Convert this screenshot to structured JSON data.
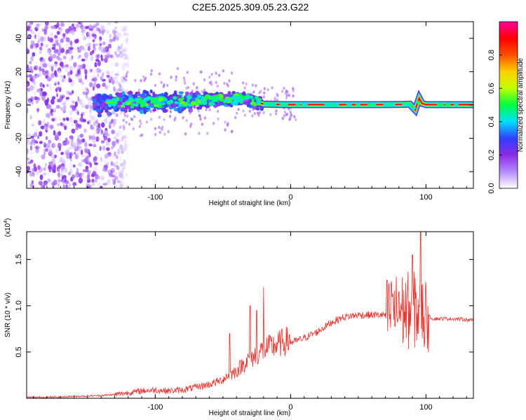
{
  "title": "C2E5.2025.309.05.23.G22",
  "chart_data": [
    {
      "type": "heatmap",
      "xlabel": "Height of straight line (km)",
      "ylabel": "Frequency (Hz)",
      "xlim": [
        -195,
        135
      ],
      "ylim": [
        -50,
        50
      ],
      "x_ticks": [
        -100,
        0,
        100
      ],
      "x_tick_labels": [
        "-100",
        "0",
        "100"
      ],
      "y_ticks": [
        -40,
        -20,
        0,
        20,
        40
      ],
      "y_tick_labels": [
        "-40",
        "-20",
        "0",
        "20",
        "40"
      ],
      "centerline": {
        "x": [
          -145,
          -130,
          -110,
          -90,
          -70,
          -55,
          -45,
          -35,
          -25,
          -20,
          -10,
          0,
          20,
          40,
          60,
          80,
          88,
          92,
          95,
          97,
          100,
          120,
          135
        ],
        "y": [
          0,
          1,
          1.5,
          2,
          2.5,
          3,
          3.5,
          4,
          2,
          0.5,
          0.3,
          0.2,
          0.2,
          0.2,
          0.2,
          0.3,
          0.5,
          -3,
          4,
          1,
          0.2,
          0.2,
          0.2
        ]
      },
      "noise_region": {
        "x_range": [
          -195,
          -120
        ],
        "amplitude": 0.15
      },
      "colorbar": {
        "label": "Normalized spectral amplitude",
        "range": [
          0,
          1
        ],
        "ticks": [
          0.0,
          0.2,
          0.4,
          0.6,
          0.8
        ],
        "tick_labels": [
          "0.0",
          "0.2",
          "0.4",
          "0.6",
          "0.8"
        ],
        "colors": [
          "#ffffff",
          "#b58cff",
          "#8a2be2",
          "#3040ff",
          "#00e0ff",
          "#00ff40",
          "#c0ff00",
          "#ffd000",
          "#ff5000",
          "#ff0000",
          "#ff00a0"
        ]
      }
    },
    {
      "type": "line",
      "xlabel": "Height of straight line (km)",
      "ylabel": "SNR (10 * v/v)",
      "y_multiplier": "(x10",
      "y_multiplier_exp": "4",
      "y_multiplier_close": ")",
      "xlim": [
        -195,
        135
      ],
      "ylim": [
        0,
        1.8
      ],
      "x_ticks": [
        -100,
        0,
        100
      ],
      "x_tick_labels": [
        "-100",
        "0",
        "100"
      ],
      "y_ticks": [
        0.5,
        1.0,
        1.5
      ],
      "y_tick_labels": [
        "0.5",
        "1.0",
        "1.5"
      ],
      "color": "#e8302a",
      "series": [
        {
          "x": [
            -195,
            -180,
            -160,
            -140,
            -130,
            -120,
            -110,
            -100,
            -90,
            -80,
            -70,
            -60,
            -50,
            -40,
            -35,
            -30,
            -25,
            -20,
            -10,
            0,
            10,
            20,
            30,
            40,
            50,
            60,
            70,
            75,
            80,
            85,
            90,
            95,
            98,
            100,
            105,
            110,
            120,
            130,
            135
          ],
          "y": [
            0.01,
            0.01,
            0.02,
            0.03,
            0.04,
            0.06,
            0.08,
            0.09,
            0.08,
            0.09,
            0.12,
            0.15,
            0.2,
            0.28,
            0.35,
            0.4,
            0.45,
            0.5,
            0.55,
            0.6,
            0.65,
            0.72,
            0.82,
            0.88,
            0.9,
            0.9,
            0.9,
            0.92,
            0.95,
            0.95,
            0.95,
            0.95,
            0.92,
            0.9,
            0.86,
            0.86,
            0.86,
            0.85,
            0.84
          ],
          "spikes": [
            [
              -20,
              1.2
            ],
            [
              -30,
              1.0
            ],
            [
              -45,
              0.7
            ],
            [
              -25,
              0.95
            ],
            [
              80,
              1.15
            ],
            [
              90,
              1.55
            ],
            [
              96,
              1.8
            ],
            [
              92,
              1.3
            ],
            [
              85,
              1.25
            ],
            [
              75,
              1.1
            ],
            [
              100,
              1.2
            ]
          ]
        }
      ]
    }
  ]
}
